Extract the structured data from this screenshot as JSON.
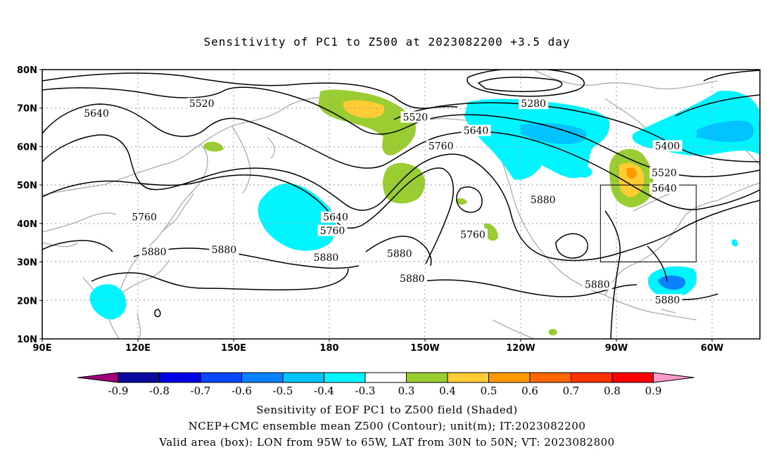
{
  "title": "Sensitivity of PC1 to Z500 at 2023082200 +3.5 day",
  "map": {
    "lat_range": [
      10,
      80
    ],
    "lon_range_deg_east": [
      90,
      315
    ],
    "lat_ticks": [
      {
        "lat": 80,
        "label": "80N"
      },
      {
        "lat": 70,
        "label": "70N"
      },
      {
        "lat": 60,
        "label": "60N"
      },
      {
        "lat": 50,
        "label": "50N"
      },
      {
        "lat": 40,
        "label": "40N"
      },
      {
        "lat": 30,
        "label": "30N"
      },
      {
        "lat": 20,
        "label": "20N"
      },
      {
        "lat": 10,
        "label": "10N"
      }
    ],
    "lon_ticks": [
      {
        "lon": 90,
        "label": "90E"
      },
      {
        "lon": 120,
        "label": "120E"
      },
      {
        "lon": 150,
        "label": "150E"
      },
      {
        "lon": 180,
        "label": "180"
      },
      {
        "lon": 210,
        "label": "150W"
      },
      {
        "lon": 240,
        "label": "120W"
      },
      {
        "lon": 270,
        "label": "90W"
      },
      {
        "lon": 300,
        "label": "60W"
      }
    ],
    "grid": "dotted",
    "contour_labels": [
      {
        "text": "5640",
        "lon": 107,
        "lat": 68.5
      },
      {
        "text": "5520",
        "lon": 140,
        "lat": 71
      },
      {
        "text": "5520",
        "lon": 207,
        "lat": 67.5
      },
      {
        "text": "5280",
        "lon": 244,
        "lat": 71
      },
      {
        "text": "5640",
        "lon": 226,
        "lat": 64
      },
      {
        "text": "5760",
        "lon": 215,
        "lat": 60
      },
      {
        "text": "5400",
        "lon": 286,
        "lat": 60
      },
      {
        "text": "5520",
        "lon": 285,
        "lat": 53
      },
      {
        "text": "5640",
        "lon": 285,
        "lat": 49
      },
      {
        "text": "5880",
        "lon": 247,
        "lat": 46
      },
      {
        "text": "5760",
        "lon": 122,
        "lat": 41.5
      },
      {
        "text": "5640",
        "lon": 182,
        "lat": 41.5
      },
      {
        "text": "5760",
        "lon": 181,
        "lat": 38
      },
      {
        "text": "5760",
        "lon": 225,
        "lat": 37
      },
      {
        "text": "5880",
        "lon": 125,
        "lat": 32.5
      },
      {
        "text": "5880",
        "lon": 147,
        "lat": 33
      },
      {
        "text": "5880",
        "lon": 179,
        "lat": 31
      },
      {
        "text": "5880",
        "lon": 202,
        "lat": 32
      },
      {
        "text": "5880",
        "lon": 206,
        "lat": 25.5
      },
      {
        "text": "5880",
        "lon": 264,
        "lat": 24
      },
      {
        "text": "5880",
        "lon": 286,
        "lat": 20
      }
    ],
    "valid_box": {
      "lon_w": -95,
      "lon_e": -65,
      "lat_s": 30,
      "lat_n": 50
    }
  },
  "colorbar": {
    "ticks": [
      "-0.9",
      "-0.8",
      "-0.7",
      "-0.6",
      "-0.5",
      "-0.4",
      "-0.3",
      "0.3",
      "0.4",
      "0.5",
      "0.6",
      "0.7",
      "0.8",
      "0.9"
    ],
    "colors": [
      "#a0007a",
      "#0a0a9e",
      "#0000e6",
      "#0b46ff",
      "#0a82ff",
      "#00c3ff",
      "#00f5ff",
      "#ffffff",
      "#9acd32",
      "#ffcc33",
      "#ff9900",
      "#ff6600",
      "#ff3300",
      "#ff0000",
      "#ff99cc"
    ]
  },
  "caption": {
    "line1": "Sensitivity of EOF PC1 to Z500 field (Shaded)",
    "line2": "NCEP+CMC ensemble mean Z500 (Contour); unit(m); IT:2023082200",
    "line3": "Valid area (box): LON from 95W to 65W, LAT from 30N to 50N; VT: 2023082800"
  }
}
